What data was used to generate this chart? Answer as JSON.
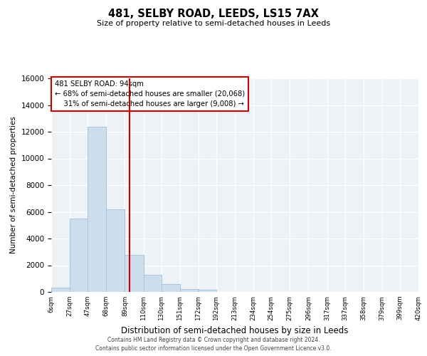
{
  "title": "481, SELBY ROAD, LEEDS, LS15 7AX",
  "subtitle": "Size of property relative to semi-detached houses in Leeds",
  "xlabel": "Distribution of semi-detached houses by size in Leeds",
  "ylabel": "Number of semi-detached properties",
  "bar_color": "#ccdded",
  "bar_edge_color": "#aac4d8",
  "property_line_x": 94,
  "property_line_color": "#cc0000",
  "annotation_title": "481 SELBY ROAD: 94sqm",
  "annotation_line1": "← 68% of semi-detached houses are smaller (20,068)",
  "annotation_line2": "    31% of semi-detached houses are larger (9,008) →",
  "bin_edges": [
    6,
    27,
    47,
    68,
    89,
    110,
    130,
    151,
    172,
    192,
    213,
    234,
    254,
    275,
    296,
    317,
    337,
    358,
    379,
    399,
    420
  ],
  "bin_counts": [
    300,
    5500,
    12400,
    6200,
    2800,
    1300,
    600,
    230,
    170,
    0,
    0,
    0,
    0,
    0,
    0,
    0,
    0,
    0,
    0,
    0
  ],
  "ylim": [
    0,
    16000
  ],
  "yticks": [
    0,
    2000,
    4000,
    6000,
    8000,
    10000,
    12000,
    14000,
    16000
  ],
  "footer1": "Contains HM Land Registry data © Crown copyright and database right 2024.",
  "footer2": "Contains public sector information licensed under the Open Government Licence v3.0.",
  "background_color": "#edf2f7"
}
